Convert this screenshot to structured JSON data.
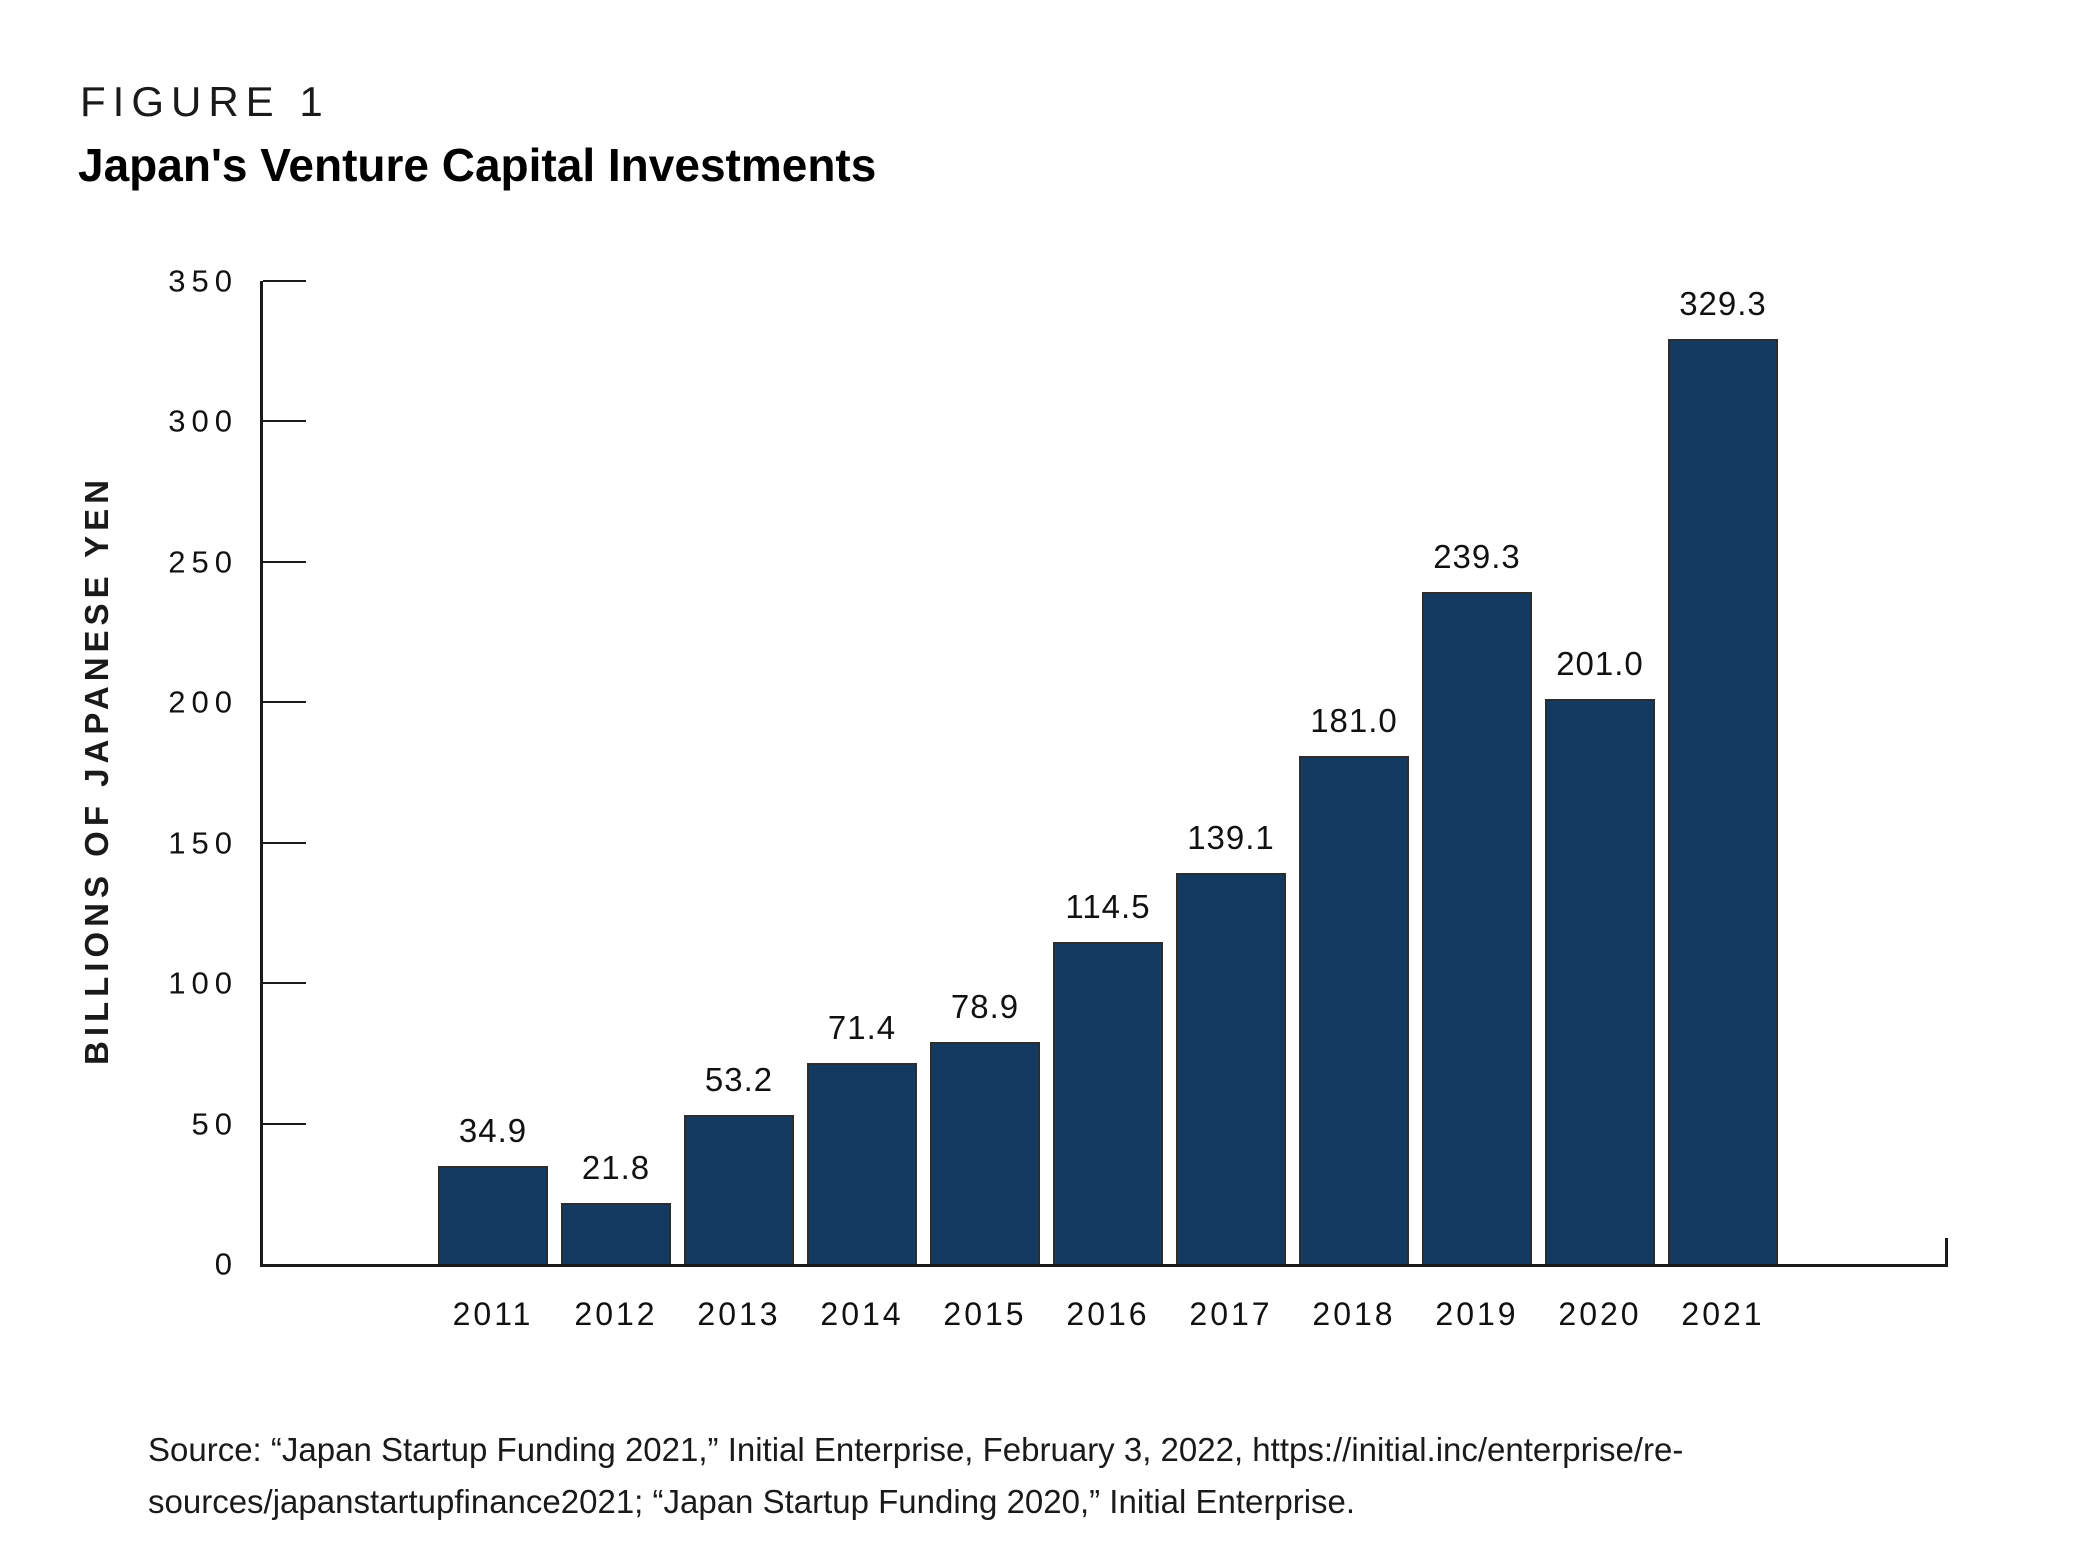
{
  "header": {
    "figure_label": "FIGURE 1",
    "title": "Japan's Venture Capital Investments"
  },
  "chart_data": {
    "type": "bar",
    "title": "Japan's Venture Capital Investments",
    "categories": [
      "2011",
      "2012",
      "2013",
      "2014",
      "2015",
      "2016",
      "2017",
      "2018",
      "2019",
      "2020",
      "2021"
    ],
    "values": [
      34.9,
      21.8,
      53.2,
      71.4,
      78.9,
      114.5,
      139.1,
      181.0,
      239.3,
      201.0,
      329.3
    ],
    "value_labels": [
      "34.9",
      "21.8",
      "53.2",
      "71.4",
      "78.9",
      "114.5",
      "139.1",
      "181.0",
      "239.3",
      "201.0",
      "329.3"
    ],
    "xlabel": "",
    "ylabel": "BILLIONS OF JAPANESE YEN",
    "ylim": [
      0,
      350
    ],
    "y_ticks": [
      0,
      50,
      100,
      150,
      200,
      250,
      300,
      350
    ],
    "grid": false,
    "legend": "none",
    "bar_color": "#133B62",
    "bar_edge_color": "#2d2d2d"
  },
  "source": {
    "line1": "Source: “Japan Startup Funding 2021,” Initial Enterprise, February 3, 2022, https://initial.inc/enterprise/re-",
    "line2": "sources/japanstartupfinance2021; “Japan Startup Funding 2020,” Initial Enterprise."
  }
}
